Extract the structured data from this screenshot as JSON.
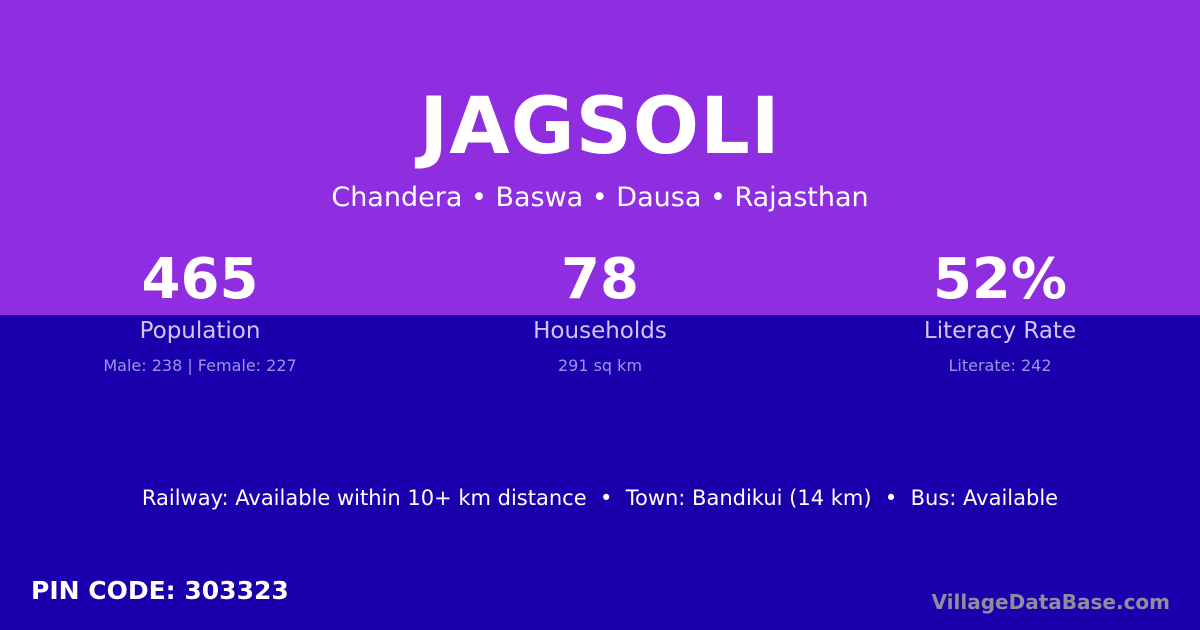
{
  "title": "JAGSOLI",
  "location": "Chandera • Baswa • Dausa • Rajasthan",
  "stats": [
    {
      "value": "465",
      "label": "Population",
      "detail": "Male: 238 | Female: 227"
    },
    {
      "value": "78",
      "label": "Households",
      "detail": "291 sq km"
    },
    {
      "value": "52%",
      "label": "Literacy Rate",
      "detail": "Literate: 242"
    }
  ],
  "transport": "Railway: Available within 10+ km distance  •  Town: Bandikui (14 km)  •  Bus: Available",
  "pin_code": "PIN CODE: 303323",
  "brand": "VillageDataBase.com",
  "colors": {
    "top": "#8f2ee0",
    "bottom": "#1a00ad"
  }
}
